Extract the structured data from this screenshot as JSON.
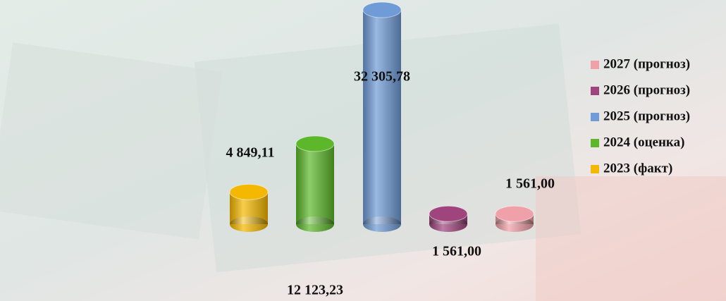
{
  "chart_data": {
    "type": "bar",
    "series": [
      {
        "name": "2023 (факт)",
        "color": "#f5b800",
        "values": [
          4849.11
        ],
        "value_labels": [
          "4 849,11"
        ]
      },
      {
        "name": "2024 (оценка)",
        "color": "#5cb82a",
        "values": [
          12123.23
        ],
        "value_labels": [
          "12 123,23"
        ]
      },
      {
        "name": "2025 (прогноз)",
        "color": "#6f9bd6",
        "values": [
          32305.78
        ],
        "value_labels": [
          "32 305,78"
        ]
      },
      {
        "name": "2026 (прогноз)",
        "color": "#a0447e",
        "values": [
          1561.0
        ],
        "value_labels": [
          "1 561,00"
        ]
      },
      {
        "name": "2027 (прогноз)",
        "color": "#f0a0a8",
        "values": [
          1561.0
        ],
        "value_labels": [
          "1 561,00"
        ]
      }
    ]
  }
}
